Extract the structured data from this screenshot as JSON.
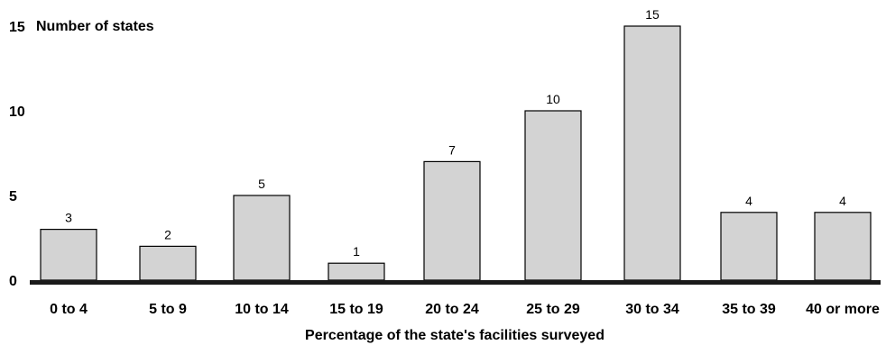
{
  "chart_data": {
    "type": "bar",
    "ylabel": "Number of states",
    "xlabel": "Percentage of the state's facilities surveyed",
    "categories": [
      "0 to 4",
      "5 to 9",
      "10 to 14",
      "15 to 19",
      "20 to 24",
      "25 to 29",
      "30 to 34",
      "35 to 39",
      "40 or more"
    ],
    "values": [
      3,
      2,
      5,
      1,
      7,
      10,
      15,
      4,
      4
    ],
    "ylim": [
      0,
      15
    ],
    "yticks": [
      "0",
      "5",
      "10",
      "15"
    ],
    "bar_color": "#d3d3d3",
    "grid": false
  }
}
